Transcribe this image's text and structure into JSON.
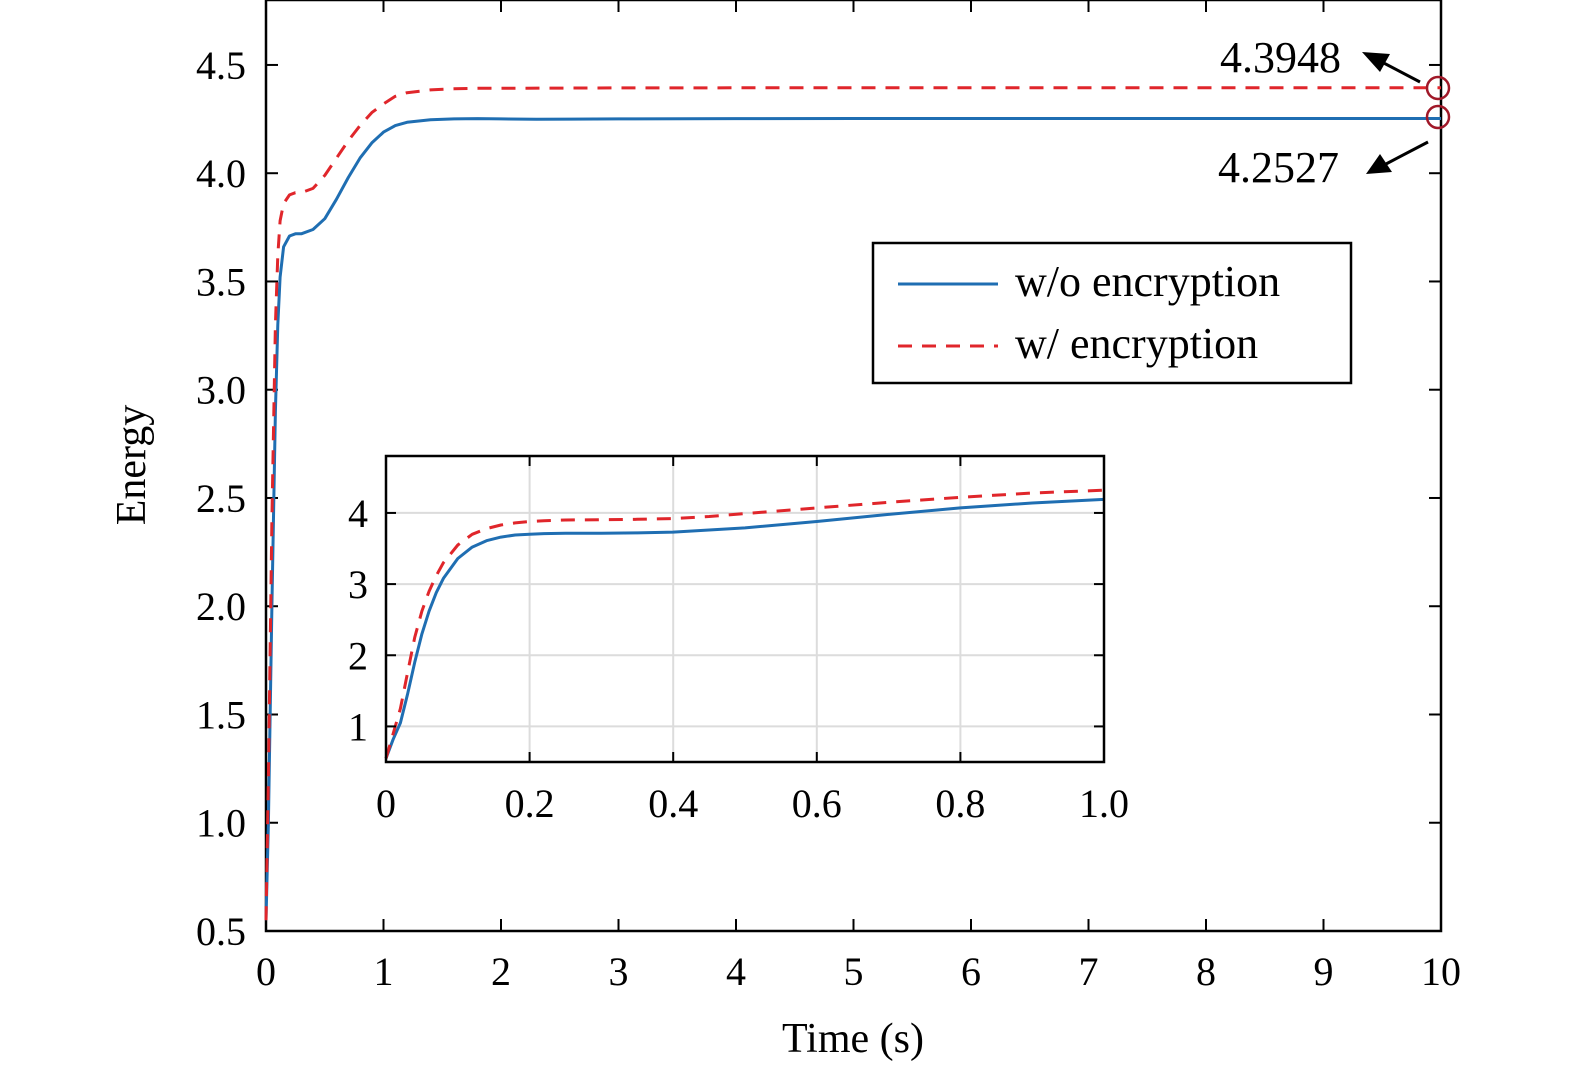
{
  "chart_data": [
    {
      "type": "line",
      "xlabel": "Time (s)",
      "ylabel": "Energy",
      "xlim": [
        0,
        10
      ],
      "ylim": [
        0.5,
        4.8
      ],
      "xticks": [
        "0",
        "1",
        "2",
        "3",
        "4",
        "5",
        "6",
        "7",
        "8",
        "9",
        "10"
      ],
      "yticks": [
        "0.5",
        "1.0",
        "1.5",
        "2.0",
        "2.5",
        "3.0",
        "3.5",
        "4.0",
        "4.5"
      ],
      "grid": false,
      "legend": "center-right",
      "series": [
        {
          "name": "w/o encryption",
          "style": "solid",
          "color": "#1f6eb2",
          "x": [
            0,
            0.02,
            0.05,
            0.08,
            0.1,
            0.12,
            0.15,
            0.2,
            0.25,
            0.3,
            0.4,
            0.5,
            0.6,
            0.7,
            0.8,
            0.9,
            1.0,
            1.1,
            1.2,
            1.4,
            1.6,
            1.8,
            2.0,
            2.3,
            2.6,
            3,
            4,
            5,
            6,
            7,
            8,
            9,
            10
          ],
          "y": [
            0.55,
            1.0,
            2.0,
            2.9,
            3.3,
            3.52,
            3.66,
            3.71,
            3.72,
            3.72,
            3.74,
            3.79,
            3.88,
            3.98,
            4.07,
            4.14,
            4.19,
            4.22,
            4.235,
            4.247,
            4.251,
            4.252,
            4.251,
            4.249,
            4.25,
            4.251,
            4.252,
            4.2527,
            4.2527,
            4.2527,
            4.2527,
            4.2527,
            4.2527
          ]
        },
        {
          "name": "w/ encryption",
          "style": "dashed",
          "color": "#e0262b",
          "x": [
            0,
            0.02,
            0.05,
            0.08,
            0.1,
            0.12,
            0.15,
            0.2,
            0.25,
            0.3,
            0.4,
            0.5,
            0.6,
            0.7,
            0.8,
            0.9,
            1.0,
            1.1,
            1.2,
            1.4,
            1.6,
            1.8,
            2.0,
            2.5,
            3,
            4,
            5,
            6,
            7,
            8,
            9,
            10
          ],
          "y": [
            0.55,
            1.2,
            2.4,
            3.3,
            3.62,
            3.78,
            3.86,
            3.9,
            3.91,
            3.91,
            3.93,
            3.99,
            4.07,
            4.15,
            4.22,
            4.28,
            4.32,
            4.355,
            4.372,
            4.385,
            4.39,
            4.392,
            4.392,
            4.393,
            4.394,
            4.3946,
            4.3947,
            4.3948,
            4.3948,
            4.3948,
            4.3948,
            4.3948
          ]
        }
      ],
      "annotations": [
        {
          "text": "4.3948",
          "x": 10,
          "y": 4.3948,
          "marker": "circle",
          "marker_color": "#a01828"
        },
        {
          "text": "4.2527",
          "x": 10,
          "y": 4.2527,
          "marker": "circle",
          "marker_color": "#a01828"
        }
      ]
    },
    {
      "type": "line",
      "inset": true,
      "xlim": [
        0,
        1.0
      ],
      "ylim": [
        0.5,
        4.8
      ],
      "xticks": [
        "0",
        "0.2",
        "0.4",
        "0.6",
        "0.8",
        "1.0"
      ],
      "yticks": [
        "1",
        "2",
        "3",
        "4"
      ],
      "grid": true,
      "series": [
        {
          "name": "w/o encryption",
          "style": "solid",
          "color": "#1f6eb2",
          "x": [
            0,
            0.01,
            0.02,
            0.03,
            0.04,
            0.05,
            0.06,
            0.07,
            0.08,
            0.1,
            0.12,
            0.14,
            0.16,
            0.18,
            0.2,
            0.22,
            0.25,
            0.3,
            0.35,
            0.4,
            0.45,
            0.5,
            0.6,
            0.7,
            0.8,
            0.9,
            1.0
          ],
          "y": [
            0.55,
            0.82,
            1.05,
            1.45,
            1.9,
            2.3,
            2.62,
            2.88,
            3.08,
            3.36,
            3.52,
            3.61,
            3.66,
            3.69,
            3.7,
            3.71,
            3.715,
            3.715,
            3.72,
            3.73,
            3.76,
            3.79,
            3.88,
            3.98,
            4.07,
            4.14,
            4.19
          ]
        },
        {
          "name": "w/ encryption",
          "style": "dashed",
          "color": "#e0262b",
          "x": [
            0,
            0.01,
            0.02,
            0.03,
            0.04,
            0.05,
            0.06,
            0.07,
            0.08,
            0.1,
            0.12,
            0.14,
            0.16,
            0.18,
            0.2,
            0.22,
            0.25,
            0.3,
            0.35,
            0.4,
            0.45,
            0.5,
            0.6,
            0.7,
            0.8,
            0.9,
            1.0
          ],
          "y": [
            0.55,
            0.9,
            1.25,
            1.75,
            2.25,
            2.62,
            2.9,
            3.12,
            3.3,
            3.55,
            3.7,
            3.78,
            3.83,
            3.86,
            3.88,
            3.89,
            3.9,
            3.905,
            3.91,
            3.92,
            3.95,
            3.99,
            4.07,
            4.15,
            4.22,
            4.28,
            4.32
          ]
        }
      ]
    }
  ]
}
